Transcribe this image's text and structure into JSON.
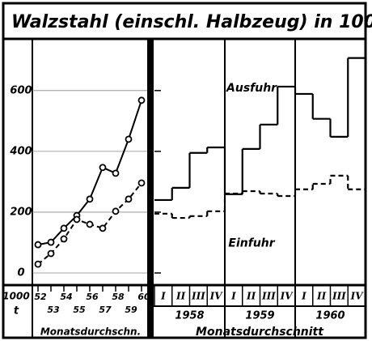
{
  "chart_data": [
    {
      "type": "line",
      "title": "Walzstahl (einschl. Halbzeug) in 1000 t",
      "ylabel": [
        "1000",
        "t"
      ],
      "xlabel": "Monatsdurchschn.",
      "categories": [
        "52",
        "53",
        "54",
        "55",
        "56",
        "57",
        "58",
        "59",
        "60"
      ],
      "ylim": [
        -40,
        770
      ],
      "yticks": [
        0,
        200,
        400,
        600
      ],
      "grid": true,
      "series": [
        {
          "color": "#000000",
          "dash": false,
          "values": [
            93,
            101,
            147,
            189,
            243,
            347,
            328,
            440,
            568
          ]
        },
        {
          "color": "#000000",
          "dash": true,
          "values": [
            29,
            64,
            112,
            176,
            160,
            147,
            203,
            243,
            296
          ]
        }
      ]
    },
    {
      "type": "step",
      "xlabel": "Monatsdurchschnitt",
      "categories": [
        "I",
        "II",
        "III",
        "IV",
        "I",
        "II",
        "III",
        "IV",
        "I",
        "II",
        "III",
        "IV"
      ],
      "groups": [
        "1958",
        "1959",
        "1960"
      ],
      "ylim": [
        -40,
        770
      ],
      "yticks": [
        0,
        200,
        400,
        600
      ],
      "grid": true,
      "series": [
        {
          "name": "Ausfuhr",
          "color": "#000000",
          "dash": false,
          "values": [
            240,
            280,
            395,
            413,
            259,
            408,
            488,
            613,
            589,
            507,
            448,
            707
          ]
        },
        {
          "name": "Einfuhr",
          "color": "#000000",
          "dash": true,
          "values": [
            195,
            181,
            187,
            203,
            261,
            269,
            261,
            253,
            275,
            293,
            320,
            275
          ]
        }
      ]
    }
  ]
}
